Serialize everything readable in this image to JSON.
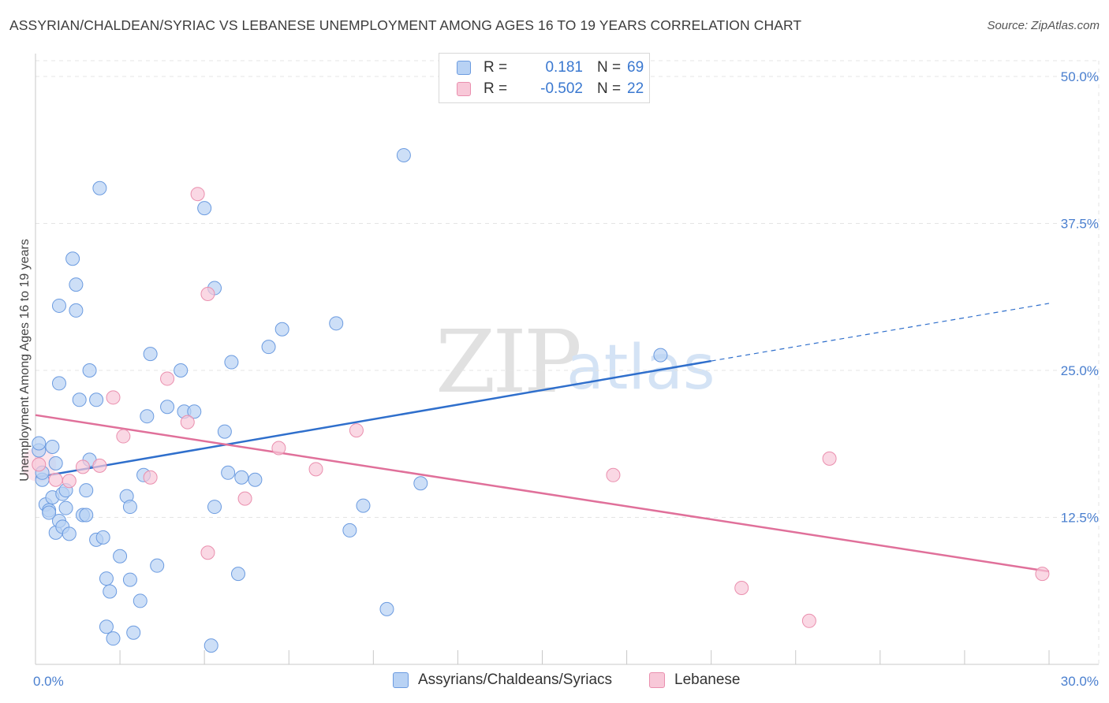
{
  "header": {
    "title": "ASSYRIAN/CHALDEAN/SYRIAC VS LEBANESE UNEMPLOYMENT AMONG AGES 16 TO 19 YEARS CORRELATION CHART",
    "source": "Source: ZipAtlas.com"
  },
  "watermark": {
    "zip": "ZIP",
    "atlas": "atlas"
  },
  "legend": {
    "series1": {
      "r_label": "R =",
      "r_value": "0.181",
      "n_label": "N =",
      "n_value": "69"
    },
    "series2": {
      "r_label": "R =",
      "r_value": "-0.502",
      "n_label": "N =",
      "n_value": "22"
    }
  },
  "bottom_legend": {
    "series1": "Assyrians/Chaldeans/Syriacs",
    "series2": "Lebanese"
  },
  "colors": {
    "blue_fill": "#b8d2f4",
    "blue_stroke": "#6b9be0",
    "blue_line": "#2f6fcc",
    "pink_fill": "#f8c8d8",
    "pink_stroke": "#ea8fae",
    "pink_line": "#e0709a",
    "grid": "#e4e4e4",
    "tick_text": "#4a7fcf"
  },
  "chart_data": {
    "type": "scatter",
    "title": "ASSYRIAN/CHALDEAN/SYRIAC VS LEBANESE UNEMPLOYMENT AMONG AGES 16 TO 19 YEARS CORRELATION CHART",
    "xlabel": "",
    "ylabel": "Unemployment Among Ages 16 to 19 years",
    "xlim": [
      0,
      30
    ],
    "ylim": [
      0,
      50
    ],
    "x_tick_labels": [
      "0.0%",
      "30.0%"
    ],
    "y_ticks": [
      12.5,
      25.0,
      37.5,
      50.0
    ],
    "y_tick_labels": [
      "12.5%",
      "25.0%",
      "37.5%",
      "50.0%"
    ],
    "grid": true,
    "legend_position": "top-center",
    "series": [
      {
        "name": "Assyrians/Chaldeans/Syriacs",
        "r": 0.181,
        "n": 69,
        "trend": {
          "x0": 0.0,
          "y0": 15.9,
          "x1": 20.0,
          "y1": 25.8,
          "dash_to_x": 30.0,
          "dash_to_y": 30.7
        },
        "points": [
          [
            0.1,
            18.2
          ],
          [
            0.1,
            18.8
          ],
          [
            0.2,
            15.7
          ],
          [
            0.2,
            16.3
          ],
          [
            0.3,
            13.6
          ],
          [
            0.4,
            13.1
          ],
          [
            0.4,
            12.9
          ],
          [
            0.5,
            18.5
          ],
          [
            0.5,
            14.2
          ],
          [
            0.6,
            11.2
          ],
          [
            0.6,
            17.1
          ],
          [
            0.7,
            12.2
          ],
          [
            0.7,
            23.9
          ],
          [
            0.7,
            30.5
          ],
          [
            0.8,
            11.7
          ],
          [
            0.8,
            14.5
          ],
          [
            0.9,
            14.8
          ],
          [
            0.9,
            13.3
          ],
          [
            1.0,
            11.1
          ],
          [
            1.1,
            34.5
          ],
          [
            1.2,
            32.3
          ],
          [
            1.2,
            30.1
          ],
          [
            1.3,
            22.5
          ],
          [
            1.4,
            12.7
          ],
          [
            1.5,
            12.7
          ],
          [
            1.5,
            14.8
          ],
          [
            1.6,
            25.0
          ],
          [
            1.6,
            17.4
          ],
          [
            1.8,
            10.6
          ],
          [
            1.8,
            22.5
          ],
          [
            1.9,
            40.5
          ],
          [
            2.0,
            10.8
          ],
          [
            2.1,
            7.3
          ],
          [
            2.1,
            3.2
          ],
          [
            2.2,
            6.2
          ],
          [
            2.3,
            2.2
          ],
          [
            2.5,
            9.2
          ],
          [
            2.7,
            14.3
          ],
          [
            2.8,
            13.4
          ],
          [
            2.8,
            7.2
          ],
          [
            2.9,
            2.7
          ],
          [
            3.1,
            5.4
          ],
          [
            3.2,
            16.1
          ],
          [
            3.3,
            21.1
          ],
          [
            3.4,
            26.4
          ],
          [
            3.6,
            8.4
          ],
          [
            3.9,
            21.9
          ],
          [
            4.3,
            25.0
          ],
          [
            4.4,
            21.5
          ],
          [
            4.7,
            21.5
          ],
          [
            5.0,
            38.8
          ],
          [
            5.2,
            1.6
          ],
          [
            5.3,
            32.0
          ],
          [
            5.3,
            13.4
          ],
          [
            5.6,
            19.8
          ],
          [
            5.7,
            16.3
          ],
          [
            5.8,
            25.7
          ],
          [
            6.0,
            7.7
          ],
          [
            6.1,
            15.9
          ],
          [
            6.5,
            15.7
          ],
          [
            6.9,
            27.0
          ],
          [
            7.3,
            28.5
          ],
          [
            8.9,
            29.0
          ],
          [
            9.3,
            11.4
          ],
          [
            9.7,
            13.5
          ],
          [
            10.4,
            4.7
          ],
          [
            10.9,
            43.3
          ],
          [
            11.4,
            15.4
          ],
          [
            18.5,
            26.3
          ]
        ]
      },
      {
        "name": "Lebanese",
        "r": -0.502,
        "n": 22,
        "trend": {
          "x0": 0.0,
          "y0": 21.2,
          "x1": 30.0,
          "y1": 7.9
        },
        "points": [
          [
            0.1,
            17.0
          ],
          [
            0.6,
            15.7
          ],
          [
            1.0,
            15.6
          ],
          [
            1.4,
            16.8
          ],
          [
            1.9,
            16.9
          ],
          [
            2.3,
            22.7
          ],
          [
            2.6,
            19.4
          ],
          [
            3.4,
            15.9
          ],
          [
            3.9,
            24.3
          ],
          [
            4.5,
            20.6
          ],
          [
            4.8,
            40.0
          ],
          [
            5.1,
            9.5
          ],
          [
            5.1,
            31.5
          ],
          [
            6.2,
            14.1
          ],
          [
            7.2,
            18.4
          ],
          [
            8.3,
            16.6
          ],
          [
            9.5,
            19.9
          ],
          [
            17.1,
            16.1
          ],
          [
            20.9,
            6.5
          ],
          [
            22.9,
            3.7
          ],
          [
            23.5,
            17.5
          ],
          [
            29.8,
            7.7
          ]
        ]
      }
    ]
  }
}
